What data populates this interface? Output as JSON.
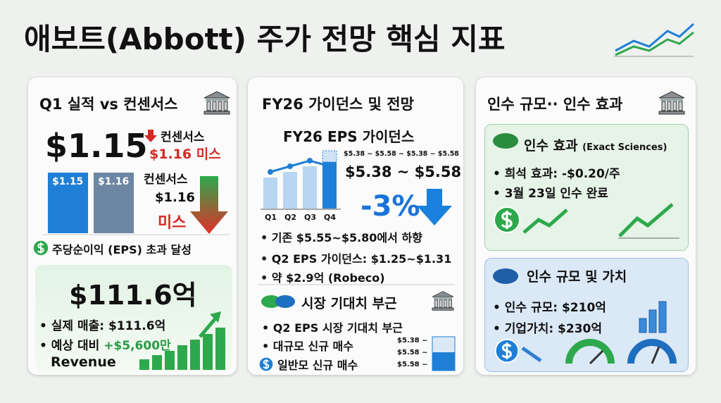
{
  "header": {
    "title": "애보트(Abbott) 주가 전망 핵심 지표"
  },
  "cards": [
    {
      "heading": "Q1 실적 vs 컨센서스",
      "eps_actual": "$1.15",
      "consensus_label": "컨센서스",
      "consensus_miss": "$1.16 미스",
      "bar_labels": [
        "$1.15",
        "$1.16"
      ],
      "side_label": "컨센서스",
      "side_value": "$1.16",
      "side_miss": "미스",
      "eps_note": "주당순이익 (EPS) 초과 달성",
      "revenue": {
        "big": "$111.6억",
        "actual": "• 실제 매출: $111.6억",
        "vs_prefix": "• 예상 대비",
        "vs_value": "+$5,600만",
        "label": "Revenue"
      }
    },
    {
      "heading": "FY26 가이던스 및 전망",
      "subheading": "FY26 EPS 가이던스",
      "range_small": "$5.38 ~ $5.58 ~ $5.38 ~ $5.58",
      "range": "$5.38 ~ $5.58",
      "quarters": [
        "Q1",
        "Q2",
        "Q3",
        "Q4"
      ],
      "change": "-3%",
      "bullets": [
        "• 기존 $5.55~$5.80에서 하향",
        "• Q2 EPS 가이던스: $1.25~$1.31",
        "• 약 $2.9억 (Robeco)"
      ],
      "market_heading": "시장 기대치 부근",
      "market_bullets": [
        "• Q2 EPS 시장 기대치 부근",
        "• 대규모 신규 매수",
        "일반모 신규 매수"
      ],
      "mini_labels": [
        "$5.38 ~",
        "$5.58 ~",
        "$5.58 ~"
      ]
    },
    {
      "heading": "인수 규모·· 인수 효과",
      "effect": {
        "title": "인수 효과",
        "company": "(Exact Sciences)",
        "bullets": [
          "• 희석 효과: -$0.20/주",
          "• 3월 23일 인수 완료"
        ]
      },
      "scale": {
        "title": "인수 규모 및 가치",
        "bullets": [
          "• 인수 규모: $210억",
          "• 기업가치: $230억"
        ]
      }
    }
  ]
}
